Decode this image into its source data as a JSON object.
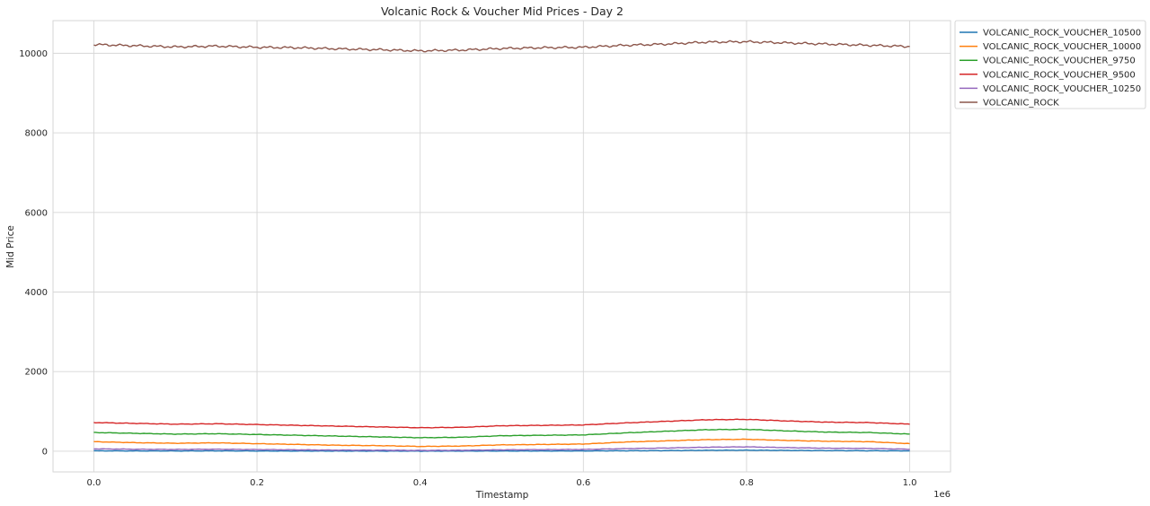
{
  "chart_data": {
    "type": "line",
    "title": "Volcanic Rock & Voucher Mid Prices - Day 2",
    "xlabel": "Timestamp",
    "ylabel": "Mid Price",
    "x_scale_label": "1e6",
    "xlim": [
      -0.05,
      1.05
    ],
    "ylim": [
      -520,
      10820
    ],
    "x_ticks": [
      0.0,
      0.2,
      0.4,
      0.6,
      0.8,
      1.0
    ],
    "x_tick_labels": [
      "0.0",
      "0.2",
      "0.4",
      "0.6",
      "0.8",
      "1.0"
    ],
    "y_ticks": [
      0,
      2000,
      4000,
      6000,
      8000,
      10000
    ],
    "y_tick_labels": [
      "0",
      "2000",
      "4000",
      "6000",
      "8000",
      "10000"
    ],
    "grid": true,
    "legend_position": "outside-upper-right",
    "x": [
      0.0,
      0.05,
      0.1,
      0.15,
      0.2,
      0.25,
      0.3,
      0.35,
      0.4,
      0.45,
      0.5,
      0.55,
      0.6,
      0.65,
      0.7,
      0.75,
      0.8,
      0.85,
      0.9,
      0.95,
      1.0
    ],
    "series": [
      {
        "name": "VOLCANIC_ROCK_VOUCHER_10500",
        "color": "#1f77b4",
        "values": [
          10,
          8,
          7,
          9,
          6,
          5,
          4,
          4,
          3,
          4,
          5,
          6,
          8,
          12,
          15,
          22,
          25,
          20,
          15,
          12,
          10
        ]
      },
      {
        "name": "VOLCANIC_ROCK_VOUCHER_10000",
        "color": "#ff7f0e",
        "values": [
          240,
          215,
          200,
          210,
          190,
          170,
          150,
          140,
          120,
          130,
          160,
          170,
          180,
          230,
          260,
          290,
          300,
          270,
          250,
          240,
          190
        ]
      },
      {
        "name": "VOLCANIC_ROCK_VOUCHER_9750",
        "color": "#2ca02c",
        "values": [
          470,
          450,
          430,
          440,
          420,
          400,
          380,
          360,
          340,
          350,
          390,
          400,
          410,
          460,
          500,
          540,
          550,
          510,
          480,
          470,
          430
        ]
      },
      {
        "name": "VOLCANIC_ROCK_VOUCHER_9500",
        "color": "#d62728",
        "values": [
          720,
          700,
          680,
          690,
          670,
          650,
          630,
          610,
          590,
          600,
          640,
          650,
          660,
          710,
          750,
          790,
          800,
          760,
          730,
          720,
          680
        ]
      },
      {
        "name": "VOLCANIC_ROCK_VOUCHER_10250",
        "color": "#9467bd",
        "values": [
          60,
          50,
          45,
          50,
          42,
          35,
          28,
          25,
          20,
          24,
          35,
          40,
          45,
          65,
          80,
          100,
          110,
          90,
          75,
          70,
          50
        ]
      },
      {
        "name": "VOLCANIC_ROCK",
        "color": "#8c564b",
        "values": [
          10220,
          10190,
          10160,
          10180,
          10150,
          10140,
          10110,
          10090,
          10060,
          10080,
          10120,
          10140,
          10150,
          10200,
          10230,
          10280,
          10290,
          10260,
          10230,
          10200,
          10170
        ]
      }
    ]
  }
}
